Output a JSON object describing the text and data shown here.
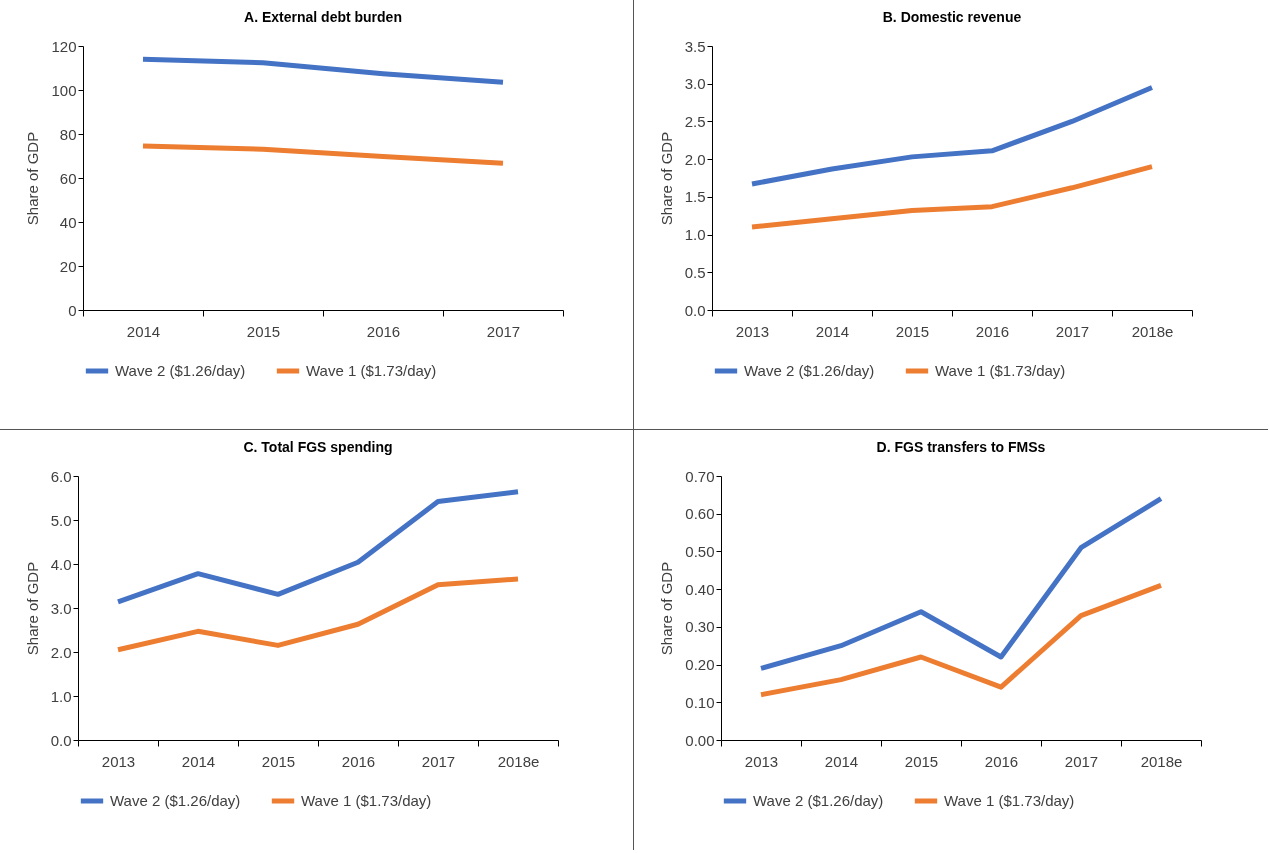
{
  "chart_data": [
    {
      "type": "line",
      "title": "A. External debt burden",
      "ylabel": "Share of GDP",
      "categories": [
        "2014",
        "2015",
        "2016",
        "2017"
      ],
      "ylim": [
        0,
        120
      ],
      "yticks": [
        0,
        20,
        40,
        60,
        80,
        100,
        120
      ],
      "legend": "bottom",
      "series": [
        {
          "name": "Wave 2 ($1.26/day)",
          "color": "#4472c4",
          "values": [
            114,
            112.4,
            107.4,
            103.5
          ]
        },
        {
          "name": "Wave 1 ($1.73/day)",
          "color": "#ed7d31",
          "values": [
            74.6,
            73.1,
            69.8,
            66.7
          ]
        }
      ]
    },
    {
      "type": "line",
      "title": "B. Domestic revenue",
      "ylabel": "Share of GDP",
      "categories": [
        "2013",
        "2014",
        "2015",
        "2016",
        "2017",
        "2018e"
      ],
      "ylim": [
        0,
        3.5
      ],
      "yticks": [
        {
          "value": 0,
          "label": "0.0"
        },
        0.5,
        {
          "value": 1,
          "label": "1.0"
        },
        1.5,
        {
          "value": 2,
          "label": "2.0"
        },
        2.5,
        {
          "value": 3,
          "label": "3.0"
        },
        3.5
      ],
      "legend": "bottom",
      "series": [
        {
          "name": "Wave 2 ($1.26/day)",
          "color": "#4472c4",
          "values": [
            1.67,
            1.87,
            2.03,
            2.11,
            2.5,
            2.95
          ]
        },
        {
          "name": "Wave 1 ($1.73/day)",
          "color": "#ed7d31",
          "values": [
            1.1,
            1.21,
            1.32,
            1.37,
            1.62,
            1.9
          ]
        }
      ]
    },
    {
      "type": "line",
      "title": "C. Total FGS spending",
      "ylabel": "Share of GDP",
      "categories": [
        "2013",
        "2014",
        "2015",
        "2016",
        "2017",
        "2018e"
      ],
      "ylim": [
        0,
        6
      ],
      "yticks": [
        {
          "value": 0,
          "label": "0.0"
        },
        {
          "value": 1,
          "label": "1.0"
        },
        {
          "value": 2,
          "label": "2.0"
        },
        {
          "value": 3,
          "label": "3.0"
        },
        {
          "value": 4,
          "label": "4.0"
        },
        {
          "value": 5,
          "label": "5.0"
        },
        {
          "value": 6,
          "label": "6.0"
        }
      ],
      "legend": "bottom",
      "series": [
        {
          "name": "Wave 2 ($1.26/day)",
          "color": "#4472c4",
          "values": [
            3.14,
            3.78,
            3.31,
            4.04,
            5.42,
            5.64
          ]
        },
        {
          "name": "Wave 1 ($1.73/day)",
          "color": "#ed7d31",
          "values": [
            2.05,
            2.47,
            2.15,
            2.63,
            3.53,
            3.66
          ]
        }
      ]
    },
    {
      "type": "line",
      "title": "D. FGS transfers to FMSs",
      "ylabel": "Share of GDP",
      "categories": [
        "2013",
        "2014",
        "2015",
        "2016",
        "2017",
        "2018e"
      ],
      "ylim": [
        0,
        0.7
      ],
      "yticks": [
        {
          "value": 0,
          "label": "0.00"
        },
        {
          "value": 0.1,
          "label": "0.10"
        },
        {
          "value": 0.2,
          "label": "0.20"
        },
        {
          "value": 0.3,
          "label": "0.30"
        },
        {
          "value": 0.4,
          "label": "0.40"
        },
        {
          "value": 0.5,
          "label": "0.50"
        },
        {
          "value": 0.6,
          "label": "0.60"
        },
        {
          "value": 0.7,
          "label": "0.70"
        }
      ],
      "legend": "bottom",
      "series": [
        {
          "name": "Wave 2 ($1.26/day)",
          "color": "#4472c4",
          "values": [
            0.19,
            0.25,
            0.34,
            0.22,
            0.51,
            0.64
          ]
        },
        {
          "name": "Wave 1 ($1.73/day)",
          "color": "#ed7d31",
          "values": [
            0.12,
            0.16,
            0.22,
            0.14,
            0.33,
            0.41
          ]
        }
      ]
    }
  ]
}
